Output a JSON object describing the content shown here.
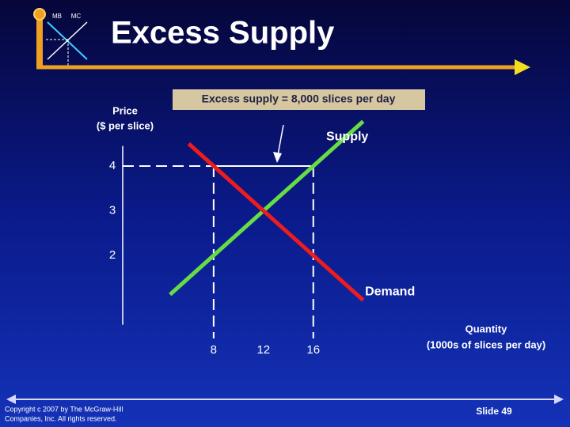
{
  "header": {
    "logo_left": "MB",
    "logo_right": "MC",
    "title": "Excess Supply"
  },
  "chart_data": {
    "type": "line",
    "y_label": [
      "Price",
      "($ per slice)"
    ],
    "x_label": [
      "Quantity",
      "(1000s of slices per day)"
    ],
    "annotation": "Excess supply = 8,000 slices per day",
    "xlim": [
      0.7,
      30
    ],
    "ylim": [
      0.45,
      4.45
    ],
    "xticks": [
      8,
      12,
      16
    ],
    "yticks": [
      2,
      3,
      4
    ],
    "series": [
      {
        "name": "Supply",
        "color": "#66dd44",
        "x": [
          4.5,
          20
        ],
        "values": [
          1.125,
          5
        ]
      },
      {
        "name": "Demand",
        "color": "#ee1c1c",
        "x": [
          6,
          20
        ],
        "values": [
          4.5,
          1
        ]
      }
    ]
  },
  "footer": {
    "copyright": [
      "Copyright c 2007 by The McGraw-Hill",
      "Companies, Inc.  All rights reserved."
    ],
    "slide": "Slide 49"
  }
}
